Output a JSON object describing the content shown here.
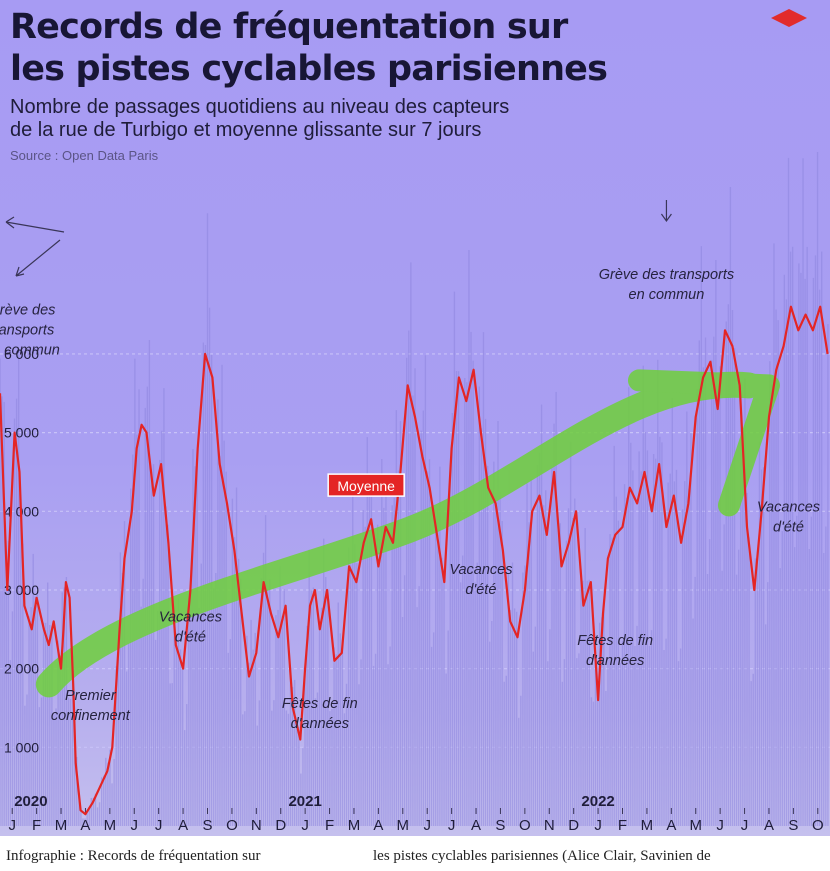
{
  "header": {
    "title_line1": "Records de fréquentation sur",
    "title_line2": "les pistes cyclables parisiennes",
    "subtitle_line1": "Nombre de passages quotidiens au niveau des capteurs",
    "subtitle_line2": "de la rue de Turbigo et moyenne glissante sur 7 jours",
    "source": "Source : Open Data Paris"
  },
  "footer": {
    "left": "Infographie : Records de fréquentation sur",
    "right": "les pistes cyclables parisiennes (Alice Clair, Savinien de"
  },
  "colors": {
    "background": "#a9a0f2",
    "average_line": "#e42525",
    "daily_bars": "#8e86df",
    "trend_arrow": "#6fcf3c",
    "logo": "#e22b2b"
  },
  "chart_data": {
    "type": "line",
    "title": "Records de fréquentation sur les pistes cyclables parisiennes",
    "subtitle": "Nombre de passages quotidiens au niveau des capteurs de la rue de Turbigo et moyenne glissante sur 7 jours",
    "x_unit": "month index from January 2020 (0 = Jan 2020)",
    "xlim": [
      -0.5,
      33.5
    ],
    "ylim": [
      0,
      6800
    ],
    "yticks": [
      1000,
      2000,
      3000,
      4000,
      5000,
      6000
    ],
    "ytick_labels": [
      "1 000",
      "2 000",
      "3 000",
      "4 000",
      "5 000",
      "6 000"
    ],
    "month_labels": [
      "J",
      "F",
      "M",
      "A",
      "M",
      "J",
      "J",
      "A",
      "S",
      "O",
      "N",
      "D",
      "J",
      "F",
      "M",
      "A",
      "M",
      "J",
      "J",
      "A",
      "S",
      "O",
      "N",
      "D",
      "J",
      "F",
      "M",
      "A",
      "M",
      "J",
      "J",
      "A",
      "S",
      "O"
    ],
    "year_labels": [
      {
        "text": "2020",
        "month": 0
      },
      {
        "text": "2021",
        "month": 12
      },
      {
        "text": "2022",
        "month": 24
      }
    ],
    "grid": true,
    "series": [
      {
        "name": "Moyenne",
        "kind": "7-day moving average",
        "x": [
          -0.5,
          -0.2,
          0.1,
          0.3,
          0.5,
          0.8,
          1.0,
          1.3,
          1.5,
          1.7,
          2.0,
          2.1,
          2.2,
          2.35,
          2.5,
          2.6,
          2.8,
          3.0,
          3.3,
          3.6,
          3.9,
          4.1,
          4.4,
          4.6,
          4.9,
          5.1,
          5.3,
          5.5,
          5.8,
          6.1,
          6.4,
          6.7,
          7.0,
          7.3,
          7.6,
          7.9,
          8.2,
          8.5,
          8.8,
          9.1,
          9.4,
          9.7,
          10.0,
          10.3,
          10.6,
          10.9,
          11.2,
          11.5,
          11.8,
          12.0,
          12.2,
          12.4,
          12.6,
          12.9,
          13.2,
          13.5,
          13.8,
          14.1,
          14.4,
          14.7,
          15.0,
          15.3,
          15.6,
          15.9,
          16.2,
          16.5,
          16.8,
          17.1,
          17.4,
          17.7,
          18.0,
          18.3,
          18.6,
          18.9,
          19.2,
          19.5,
          19.8,
          20.1,
          20.4,
          20.7,
          21.0,
          21.3,
          21.6,
          21.9,
          22.2,
          22.5,
          22.8,
          23.1,
          23.4,
          23.7,
          24.0,
          24.2,
          24.4,
          24.7,
          25.0,
          25.3,
          25.6,
          25.9,
          26.2,
          26.5,
          26.8,
          27.1,
          27.4,
          27.7,
          28.0,
          28.3,
          28.6,
          28.9,
          29.2,
          29.5,
          29.8,
          30.1,
          30.4,
          30.7,
          31.0,
          31.3,
          31.6,
          31.9,
          32.2,
          32.5,
          32.8,
          33.1,
          33.4
        ],
        "y": [
          5500,
          3000,
          5000,
          4500,
          2800,
          2500,
          2900,
          2500,
          2300,
          2600,
          2000,
          2500,
          3100,
          2900,
          1800,
          800,
          200,
          150,
          300,
          500,
          700,
          1000,
          2500,
          3400,
          4000,
          4800,
          5100,
          5000,
          4200,
          4600,
          3600,
          2300,
          2000,
          3000,
          4800,
          6000,
          5700,
          4600,
          4100,
          3500,
          2700,
          1900,
          2200,
          3100,
          2700,
          2400,
          2800,
          1500,
          1100,
          2000,
          2800,
          3000,
          2500,
          3000,
          2100,
          2200,
          3300,
          3100,
          3600,
          3900,
          3300,
          3800,
          3600,
          4500,
          5600,
          5200,
          4700,
          4300,
          3700,
          3100,
          4800,
          5700,
          5400,
          5800,
          5000,
          4300,
          4100,
          3500,
          2600,
          2400,
          3000,
          4000,
          4200,
          3700,
          4500,
          3300,
          3600,
          4000,
          2800,
          3100,
          1600,
          2700,
          3400,
          3700,
          3800,
          4300,
          4100,
          4500,
          4000,
          4600,
          3800,
          4200,
          3600,
          4100,
          5200,
          5700,
          5900,
          5300,
          6300,
          6100,
          5600,
          3800,
          3000,
          4000,
          5200,
          5800,
          6100,
          6600,
          6300,
          6500,
          6300,
          6600,
          6000
        ]
      }
    ],
    "annotations": [
      {
        "label": "Moyenne",
        "kind": "line label"
      },
      {
        "lines": [
          "Grève des",
          "transports",
          "en commun"
        ],
        "x": 0.4,
        "y": 6500
      },
      {
        "lines": [
          "Grève des transports",
          "en commun"
        ],
        "x": 26.8,
        "y": 6950
      },
      {
        "lines": [
          "Premier",
          "confinement"
        ],
        "x": 3.2,
        "y": 1600
      },
      {
        "lines": [
          "Vacances",
          "d'été"
        ],
        "x": 7.3,
        "y": 2600
      },
      {
        "lines": [
          "Fêtes de fin",
          "d'années"
        ],
        "x": 12.6,
        "y": 1500
      },
      {
        "lines": [
          "Vacances",
          "d'été"
        ],
        "x": 19.2,
        "y": 3200
      },
      {
        "lines": [
          "Fêtes de fin",
          "d'années"
        ],
        "x": 24.7,
        "y": 2300
      },
      {
        "lines": [
          "Vacances",
          "d'été"
        ],
        "x": 31.8,
        "y": 4000
      }
    ],
    "trend_arrow": {
      "from": {
        "x": 1.5,
        "y": 1800
      },
      "to": {
        "x": 31.0,
        "y": 5600
      },
      "label": "hand-drawn upward trend"
    }
  }
}
